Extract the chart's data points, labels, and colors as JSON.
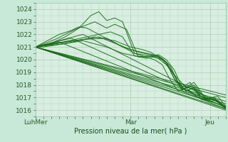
{
  "xlabel": "Pression niveau de la mer( hPa )",
  "bg_color": "#c8e8d8",
  "plot_bg_color": "#d8eee0",
  "grid_color": "#a0c8a8",
  "line_color": "#1a6b1a",
  "ylim": [
    1015.5,
    1024.5
  ],
  "yticks": [
    1016,
    1017,
    1018,
    1019,
    1020,
    1021,
    1022,
    1023,
    1024
  ],
  "xlim": [
    0,
    96
  ],
  "xtick_labels": [
    "LuhMer",
    "Mar",
    "Jeu"
  ],
  "xtick_positions": [
    0,
    48,
    88
  ]
}
